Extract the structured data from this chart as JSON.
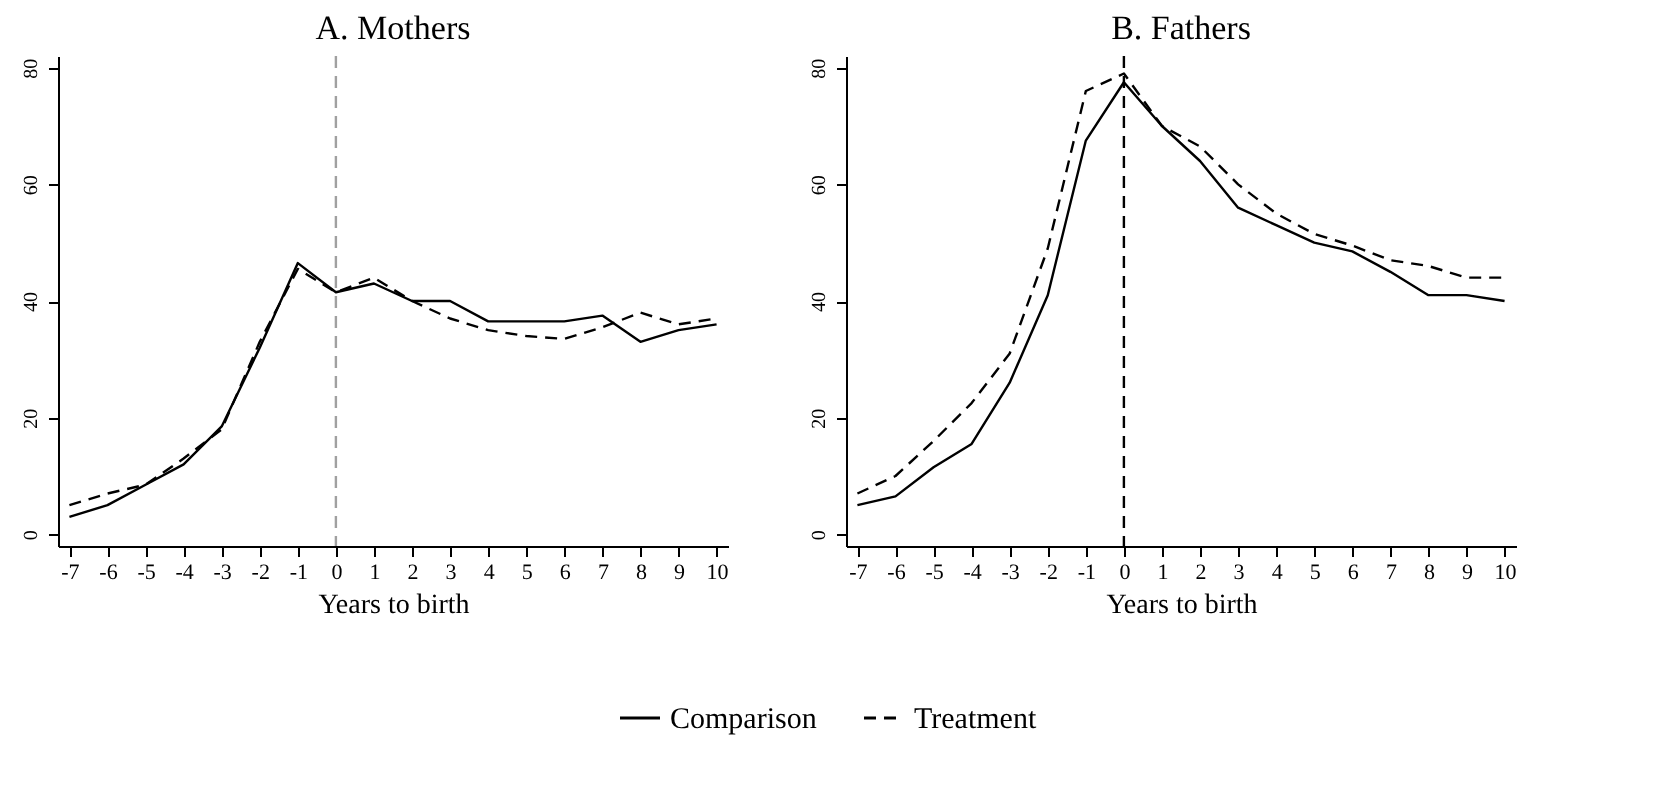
{
  "chart_data": [
    {
      "type": "line",
      "title": "A. Mothers",
      "xlabel": "Years to birth",
      "x": [
        -7,
        -6,
        -5,
        -4,
        -3,
        -2,
        -1,
        0,
        1,
        2,
        3,
        4,
        5,
        6,
        7,
        8,
        9,
        10
      ],
      "series": [
        {
          "name": "Comparison",
          "color": "#000000",
          "line_style": "solid",
          "values": [
            3,
            5,
            8.5,
            12,
            18.5,
            32,
            46.5,
            41.5,
            43,
            40,
            40,
            36.5,
            36.5,
            36.5,
            37.5,
            33,
            35,
            36
          ]
        },
        {
          "name": "Treatment",
          "color": "#000000",
          "line_style": "dashed",
          "values": [
            5,
            7,
            8.5,
            13,
            18,
            33,
            45.5,
            41.5,
            44,
            40,
            37,
            35,
            34,
            33.5,
            35.5,
            38,
            36,
            37
          ]
        }
      ],
      "xlim": [
        -7.3,
        10.3
      ],
      "xticks": [
        -7,
        -6,
        -5,
        -4,
        -3,
        -2,
        -1,
        0,
        1,
        2,
        3,
        4,
        5,
        6,
        7,
        8,
        9,
        10
      ],
      "ylim": [
        -2,
        82
      ],
      "yticks": [
        0,
        20,
        40,
        60,
        80
      ],
      "ref_lines": [
        {
          "axis": "x",
          "value": 0,
          "color": "#a0a0a0",
          "line_style": "dashed"
        }
      ],
      "grid": false,
      "legend": "bottom",
      "marker": "none"
    },
    {
      "type": "line",
      "title": "B. Fathers",
      "xlabel": "Years to birth",
      "x": [
        -7,
        -6,
        -5,
        -4,
        -3,
        -2,
        -1,
        0,
        1,
        2,
        3,
        4,
        5,
        6,
        7,
        8,
        9,
        10
      ],
      "series": [
        {
          "name": "Comparison",
          "color": "#000000",
          "line_style": "solid",
          "values": [
            5,
            6.5,
            11.5,
            15.5,
            26,
            41,
            67.5,
            77.5,
            70,
            64,
            56,
            53,
            50,
            48.5,
            45,
            41,
            41,
            40
          ]
        },
        {
          "name": "Treatment",
          "color": "#000000",
          "line_style": "dashed",
          "values": [
            7,
            10,
            16,
            22.5,
            31,
            49,
            76,
            79,
            70,
            66.5,
            60,
            55,
            51.5,
            49.5,
            47,
            46,
            44,
            44
          ]
        }
      ],
      "xlim": [
        -7.3,
        10.3
      ],
      "xticks": [
        -7,
        -6,
        -5,
        -4,
        -3,
        -2,
        -1,
        0,
        1,
        2,
        3,
        4,
        5,
        6,
        7,
        8,
        9,
        10
      ],
      "ylim": [
        -2,
        82
      ],
      "yticks": [
        0,
        20,
        40,
        60,
        80
      ],
      "ref_lines": [
        {
          "axis": "x",
          "value": 0,
          "color": "#000000",
          "line_style": "dashed"
        }
      ],
      "grid": false,
      "legend": "bottom",
      "marker": "none"
    }
  ]
}
